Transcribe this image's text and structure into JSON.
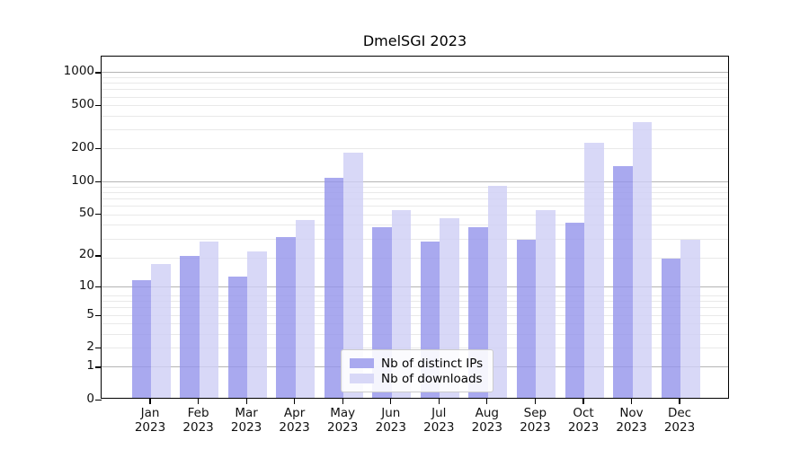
{
  "chart_data": {
    "type": "bar",
    "title": "DmelSGI 2023",
    "months": [
      "Jan",
      "Feb",
      "Mar",
      "Apr",
      "May",
      "Jun",
      "Jul",
      "Aug",
      "Sep",
      "Oct",
      "Nov",
      "Dec"
    ],
    "year": "2023",
    "y_scale": "log(value+1)",
    "y_ticks": [
      0,
      1,
      2,
      5,
      10,
      20,
      50,
      100,
      200,
      500,
      1000
    ],
    "ylim": [
      0,
      1360
    ],
    "grid": "horizontal, major at 1/10/100/1000, light minors between",
    "legend_position": "lower center",
    "series": [
      {
        "name": "Nb of distinct IPs",
        "color": "#a9a9ef",
        "values": [
          11,
          19,
          12,
          29,
          102,
          36,
          26,
          36,
          27,
          39,
          131,
          18
        ]
      },
      {
        "name": "Nb of downloads",
        "color": "#d8d8f7",
        "values": [
          16,
          26,
          21,
          42,
          176,
          52,
          43,
          87,
          52,
          216,
          337,
          27
        ]
      }
    ]
  }
}
